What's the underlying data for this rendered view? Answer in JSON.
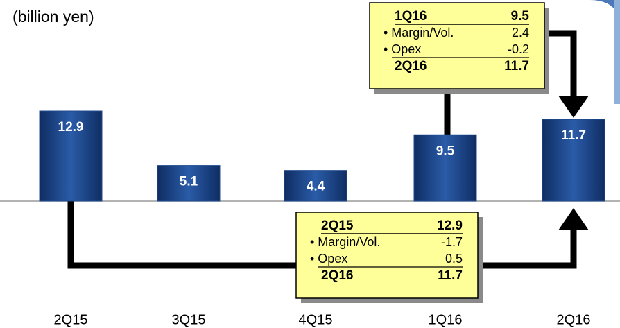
{
  "chart_data": {
    "type": "bar",
    "subtitle": "(billion yen)",
    "categories": [
      "2Q15",
      "3Q15",
      "4Q15",
      "1Q16",
      "2Q16"
    ],
    "values": [
      12.9,
      5.1,
      4.4,
      9.5,
      11.7
    ],
    "color": "#1f4a8c",
    "annotations": [
      {
        "rows": [
          [
            "1Q16",
            "9.5"
          ],
          [
            "• Margin/Vol.",
            "2.4"
          ],
          [
            "• Opex",
            "-0.2"
          ],
          [
            "2Q16",
            "11.7"
          ]
        ]
      },
      {
        "rows": [
          [
            "2Q15",
            "12.9"
          ],
          [
            "• Margin/Vol.",
            "-1.7"
          ],
          [
            "• Opex",
            "0.5"
          ],
          [
            "2Q16",
            "11.7"
          ]
        ]
      }
    ]
  }
}
